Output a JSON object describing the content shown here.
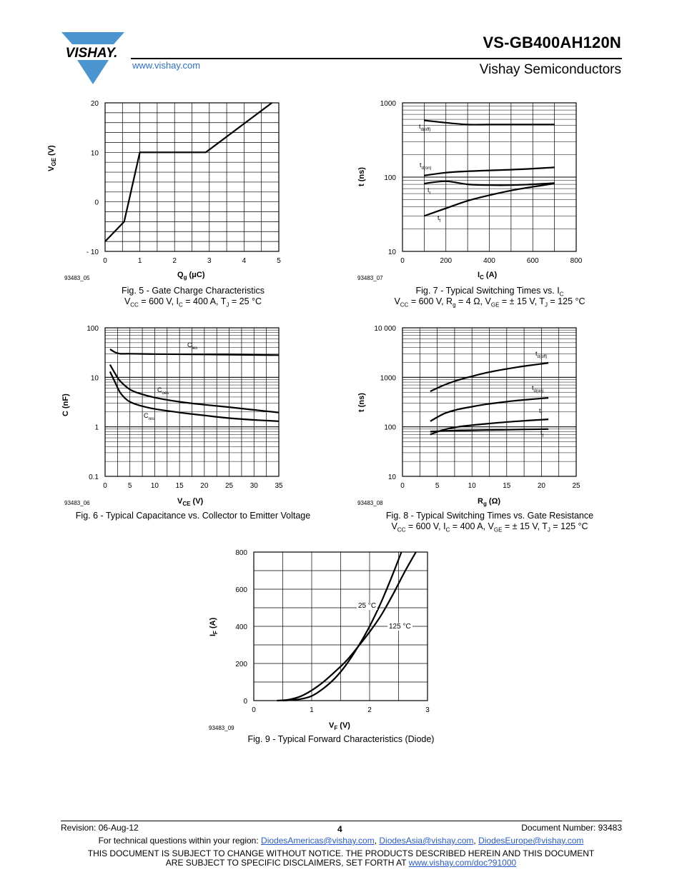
{
  "header": {
    "logo_text": "VISHAY.",
    "title": "VS-GB400AH120N",
    "subtitle": "Vishay Semiconductors",
    "website": "www.vishay.com"
  },
  "figures": {
    "fig5": {
      "code": "93483_05",
      "caption_line1": "Fig. 5 - Gate Charge Characteristics",
      "caption_line2": "VCC = 600 V, IC = 400 A, TJ = 25 °C"
    },
    "fig6": {
      "code": "93483_06",
      "caption_line1": "Fig. 6 - Typical Capacitance vs. Collector to Emitter Voltage"
    },
    "fig7": {
      "code": "93483_07",
      "caption_line1": "Fig. 7 - Typical Switching Times vs. IC",
      "caption_line2": "VCC = 600 V, Rg = 4 Ω, VGE = ± 15 V, TJ = 125 °C"
    },
    "fig8": {
      "code": "93483_08",
      "caption_line1": "Fig. 8 - Typical Switching Times vs. Gate Resistance",
      "caption_line2": "VCC = 600 V, IC = 400 A, VGE = ± 15 V, TJ = 125 °C"
    },
    "fig9": {
      "code": "93483_09",
      "caption_line1": "Fig. 9 - Typical Forward Characteristics (Diode)"
    }
  },
  "chart_data": [
    {
      "id": "fig5",
      "type": "line",
      "xlabel": "Qg (μC)",
      "ylabel": "VGE (V)",
      "xlim": [
        0,
        5
      ],
      "ylim": [
        -10,
        20
      ],
      "x_ticks": [
        "0",
        "1",
        "2",
        "3",
        "4",
        "5"
      ],
      "y_ticks": [
        "- 10",
        "0",
        "10",
        "20"
      ],
      "grid": true,
      "series": [
        {
          "points": [
            [
              0,
              -8
            ],
            [
              0.55,
              -4
            ],
            [
              1,
              10
            ],
            [
              2.9,
              10
            ],
            [
              4.8,
              20
            ]
          ]
        }
      ]
    },
    {
      "id": "fig6",
      "type": "line",
      "scale_y": "log",
      "xlabel": "VCE (V)",
      "ylabel": "C (nF)",
      "xlim": [
        0,
        35
      ],
      "ylim": [
        0.1,
        100
      ],
      "x_ticks": [
        "0",
        "5",
        "10",
        "15",
        "20",
        "25",
        "30",
        "35"
      ],
      "y_ticks": [
        "0.1",
        "1",
        "10",
        "100"
      ],
      "grid": true,
      "series": [
        {
          "name": "Cies",
          "points": [
            [
              1,
              37
            ],
            [
              2,
              32
            ],
            [
              3,
              30
            ],
            [
              5,
              30
            ],
            [
              10,
              29.5
            ],
            [
              20,
              29
            ],
            [
              35,
              28
            ]
          ]
        },
        {
          "name": "Coes",
          "points": [
            [
              1,
              18
            ],
            [
              2,
              12
            ],
            [
              3,
              8.5
            ],
            [
              5,
              5.7
            ],
            [
              7,
              4.7
            ],
            [
              10,
              3.9
            ],
            [
              15,
              3.2
            ],
            [
              20,
              2.8
            ],
            [
              25,
              2.5
            ],
            [
              30,
              2.2
            ],
            [
              35,
              1.95
            ]
          ]
        },
        {
          "name": "Cres",
          "points": [
            [
              1,
              13
            ],
            [
              2,
              8
            ],
            [
              3,
              5
            ],
            [
              4,
              3.8
            ],
            [
              5,
              3.2
            ],
            [
              7,
              2.7
            ],
            [
              10,
              2.3
            ],
            [
              15,
              1.95
            ],
            [
              20,
              1.7
            ],
            [
              25,
              1.5
            ],
            [
              30,
              1.38
            ],
            [
              35,
              1.3
            ]
          ]
        }
      ]
    },
    {
      "id": "fig7",
      "type": "line",
      "scale_y": "log",
      "xlabel": "IC (A)",
      "ylabel": "t (ns)",
      "xlim": [
        0,
        800
      ],
      "ylim": [
        10,
        1000
      ],
      "x_ticks": [
        "0",
        "200",
        "400",
        "600",
        "800"
      ],
      "y_ticks": [
        "10",
        "100",
        "1000"
      ],
      "grid": true,
      "series": [
        {
          "name": "td(off)",
          "points": [
            [
              100,
              580
            ],
            [
              200,
              540
            ],
            [
              300,
              510
            ],
            [
              400,
              510
            ],
            [
              500,
              510
            ],
            [
              600,
              510
            ],
            [
              700,
              510
            ]
          ]
        },
        {
          "name": "td(on)",
          "points": [
            [
              100,
              105
            ],
            [
              200,
              115
            ],
            [
              300,
              120
            ],
            [
              400,
              123
            ],
            [
              500,
              126
            ],
            [
              600,
              130
            ],
            [
              700,
              135
            ]
          ]
        },
        {
          "name": "tr",
          "points": [
            [
              100,
              82
            ],
            [
              200,
              88
            ],
            [
              300,
              80
            ],
            [
              400,
              78
            ],
            [
              500,
              78
            ],
            [
              600,
              80
            ],
            [
              700,
              83
            ]
          ]
        },
        {
          "name": "tf",
          "points": [
            [
              100,
              30
            ],
            [
              200,
              38
            ],
            [
              300,
              48
            ],
            [
              400,
              57
            ],
            [
              500,
              66
            ],
            [
              600,
              74
            ],
            [
              700,
              82
            ]
          ]
        }
      ]
    },
    {
      "id": "fig8",
      "type": "line",
      "scale_y": "log",
      "xlabel": "Rg (Ω)",
      "ylabel": "t (ns)",
      "xlim": [
        0,
        25
      ],
      "ylim": [
        10,
        10000
      ],
      "x_ticks": [
        "0",
        "5",
        "10",
        "15",
        "20",
        "25"
      ],
      "y_ticks": [
        "10",
        "100",
        "1000",
        "10 000"
      ],
      "grid": true,
      "series": [
        {
          "name": "td(off)",
          "points": [
            [
              4,
              520
            ],
            [
              6,
              700
            ],
            [
              8,
              880
            ],
            [
              10,
              1050
            ],
            [
              12,
              1230
            ],
            [
              14,
              1400
            ],
            [
              16,
              1560
            ],
            [
              18,
              1720
            ],
            [
              21,
              1950
            ]
          ]
        },
        {
          "name": "td(on)",
          "points": [
            [
              4,
              130
            ],
            [
              6,
              185
            ],
            [
              8,
              225
            ],
            [
              10,
              255
            ],
            [
              12,
              285
            ],
            [
              14,
              310
            ],
            [
              16,
              335
            ],
            [
              18,
              355
            ],
            [
              21,
              385
            ]
          ]
        },
        {
          "name": "tr",
          "points": [
            [
              4,
              70
            ],
            [
              6,
              88
            ],
            [
              8,
              100
            ],
            [
              10,
              108
            ],
            [
              12,
              115
            ],
            [
              14,
              122
            ],
            [
              16,
              128
            ],
            [
              18,
              134
            ],
            [
              21,
              142
            ]
          ]
        },
        {
          "name": "tf",
          "points": [
            [
              4,
              80
            ],
            [
              6,
              83
            ],
            [
              8,
              84
            ],
            [
              10,
              85
            ],
            [
              12,
              86
            ],
            [
              14,
              87
            ],
            [
              16,
              88
            ],
            [
              18,
              89
            ],
            [
              21,
              90
            ]
          ]
        }
      ]
    },
    {
      "id": "fig9",
      "type": "line",
      "xlabel": "VF (V)",
      "ylabel": "IF (A)",
      "xlim": [
        0,
        3
      ],
      "ylim": [
        0,
        800
      ],
      "x_ticks": [
        "0",
        "1",
        "2",
        "3"
      ],
      "y_ticks": [
        "0",
        "200",
        "400",
        "600",
        "800"
      ],
      "grid": true,
      "series": [
        {
          "name": "25 °C",
          "points": [
            [
              0.5,
              0
            ],
            [
              0.8,
              8
            ],
            [
              1.0,
              25
            ],
            [
              1.2,
              65
            ],
            [
              1.4,
              120
            ],
            [
              1.6,
              195
            ],
            [
              1.8,
              290
            ],
            [
              2.0,
              400
            ],
            [
              2.2,
              530
            ],
            [
              2.4,
              680
            ],
            [
              2.55,
              800
            ]
          ]
        },
        {
          "name": "125 °C",
          "points": [
            [
              0.4,
              0
            ],
            [
              0.6,
              5
            ],
            [
              0.8,
              22
            ],
            [
              1.0,
              55
            ],
            [
              1.2,
              100
            ],
            [
              1.4,
              155
            ],
            [
              1.6,
              215
            ],
            [
              1.8,
              290
            ],
            [
              2.0,
              370
            ],
            [
              2.2,
              460
            ],
            [
              2.4,
              570
            ],
            [
              2.6,
              690
            ],
            [
              2.8,
              800
            ]
          ]
        }
      ]
    }
  ],
  "footer": {
    "revision": "Revision: 06-Aug-12",
    "page_number": "4",
    "doc_number": "Document Number: 93483",
    "contact_prefix": "For technical questions within your region: ",
    "email_americas": "DiodesAmericas@vishay.com",
    "email_asia": "DiodesAsia@vishay.com",
    "email_europe": "DiodesEurope@vishay.com",
    "separator": ", ",
    "disclaimer_line1": "THIS DOCUMENT IS SUBJECT TO CHANGE WITHOUT NOTICE. THE PRODUCTS DESCRIBED HEREIN AND THIS DOCUMENT",
    "disclaimer_line2_prefix": "ARE SUBJECT TO SPECIFIC DISCLAIMERS, SET FORTH AT ",
    "disclaimer_link": "www.vishay.com/doc?91000"
  }
}
